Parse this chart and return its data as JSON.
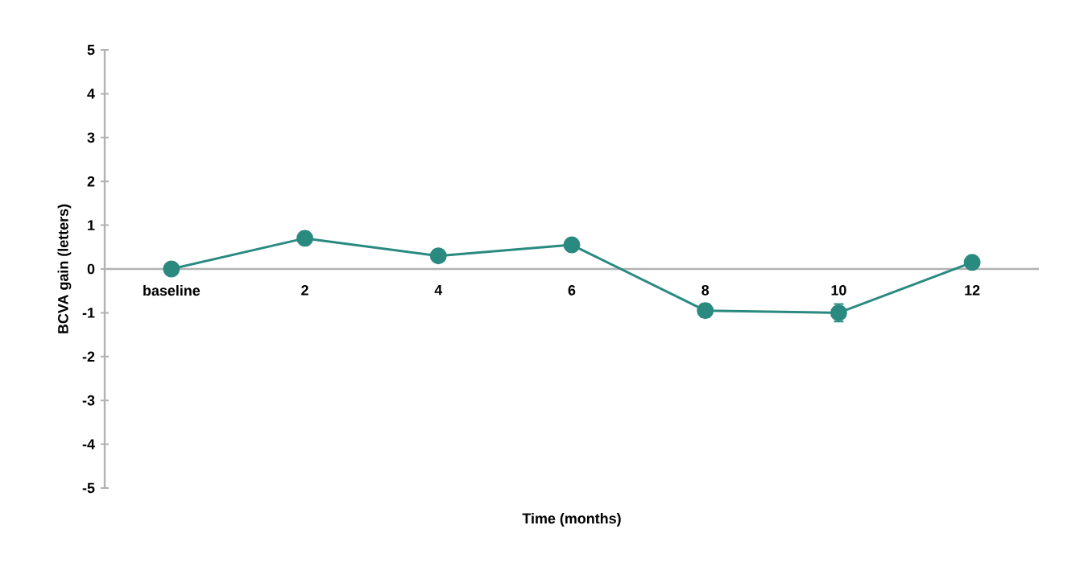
{
  "chart_data": {
    "type": "line",
    "xlabel": "Time (months)",
    "ylabel": "BCVA gain (letters)",
    "categories": [
      "baseline",
      "2",
      "4",
      "6",
      "8",
      "10",
      "12"
    ],
    "series": [
      {
        "color": "#2a8a80",
        "values": [
          0,
          0.7,
          0.3,
          0.55,
          -0.95,
          -1.0,
          0.15
        ],
        "errors": [
          0.05,
          0.15,
          0.1,
          0.1,
          0.15,
          0.2,
          0.1
        ]
      }
    ],
    "ylim": [
      -5,
      5
    ],
    "yticks": [
      -5,
      -4,
      -3,
      -2,
      -1,
      0,
      1,
      2,
      3,
      4,
      5
    ],
    "grid": false,
    "marker": "circle",
    "line_style": "solid"
  }
}
